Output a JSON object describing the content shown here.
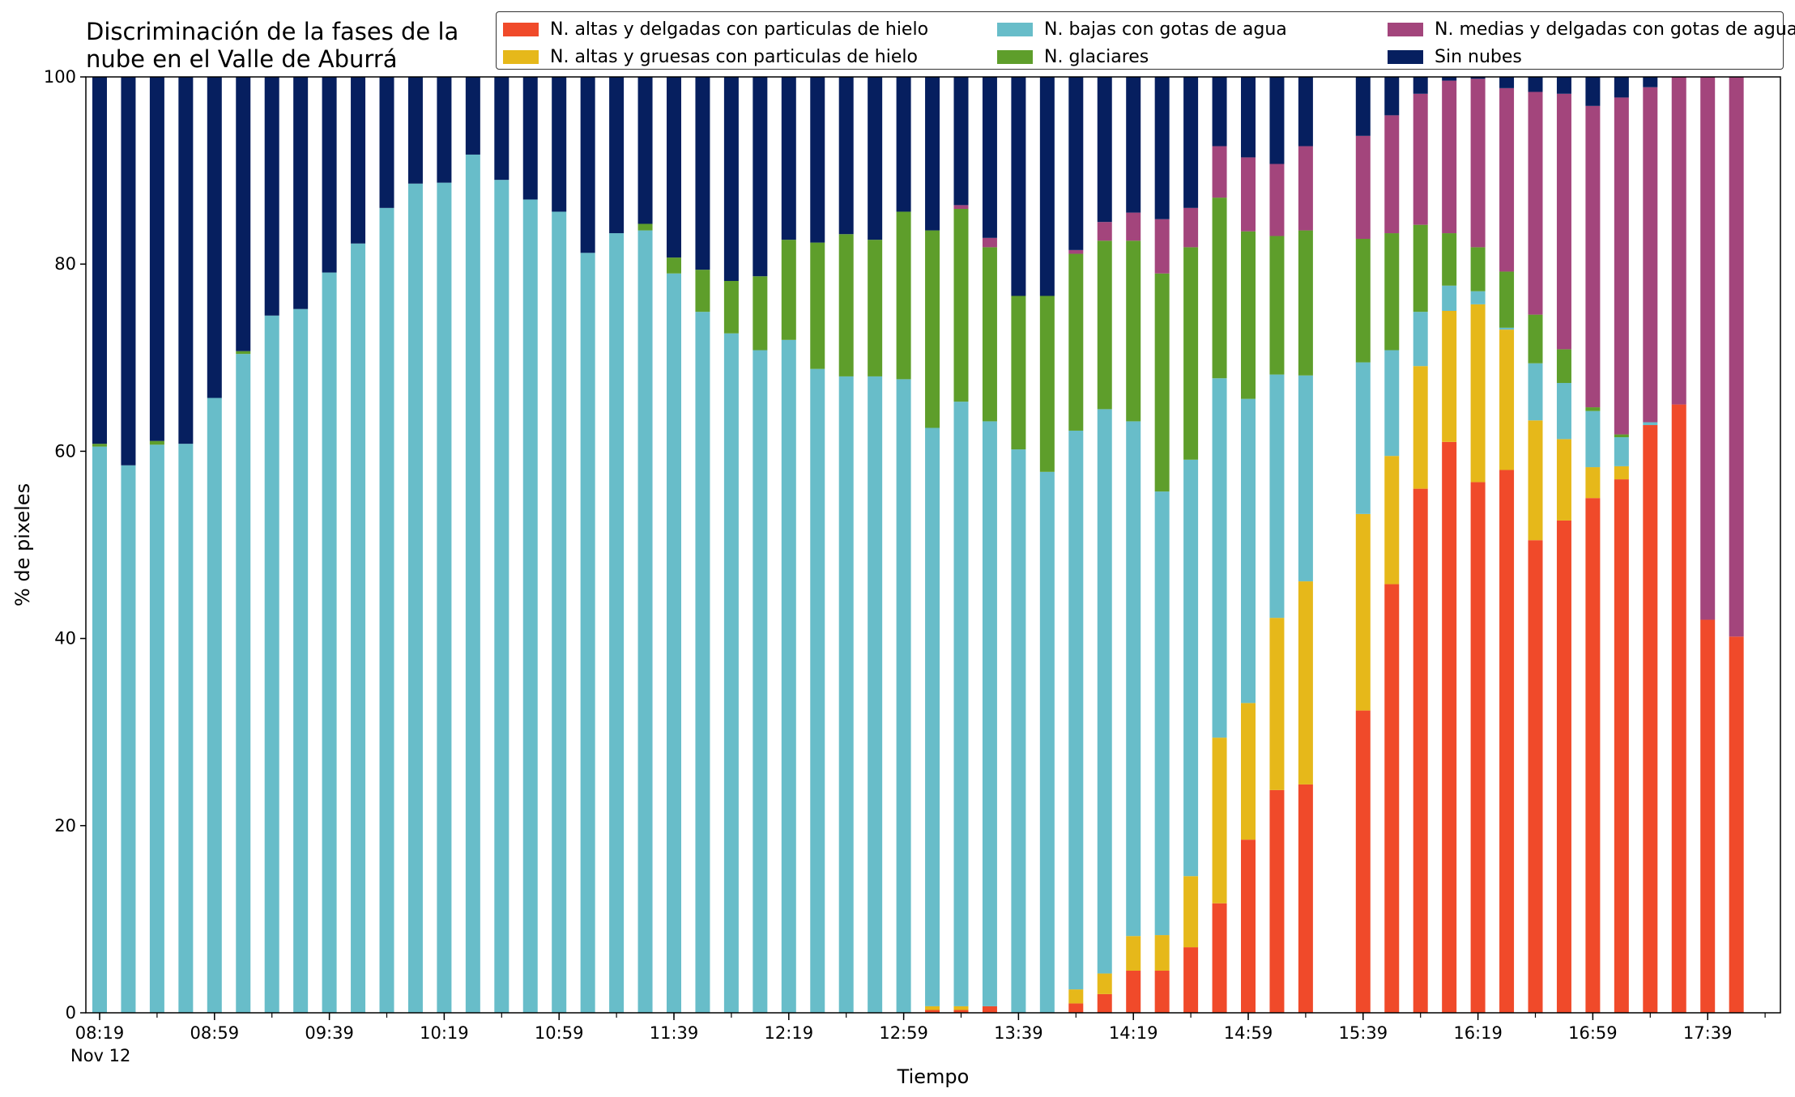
{
  "chart_data": {
    "type": "bar",
    "stacked": true,
    "title": [
      "Discriminación de la fases de la",
      "nube en el Valle de Aburrá"
    ],
    "xlabel": "Tiempo",
    "ylabel": "% de pixeles",
    "ylim": [
      0,
      100
    ],
    "yticks": [
      0,
      20,
      40,
      60,
      80,
      100
    ],
    "xtick_labels": [
      "08:19",
      "08:59",
      "09:39",
      "10:19",
      "10:59",
      "11:39",
      "12:19",
      "12:59",
      "13:39",
      "14:19",
      "14:59",
      "15:39",
      "16:19",
      "16:59",
      "17:39"
    ],
    "x_date_label": "Nov 12",
    "grid": false,
    "legend_position": "top-right",
    "categories": [
      "08:19",
      "08:29",
      "08:39",
      "08:49",
      "08:59",
      "09:09",
      "09:19",
      "09:29",
      "09:39",
      "09:49",
      "09:59",
      "10:09",
      "10:19",
      "10:29",
      "10:39",
      "10:49",
      "10:59",
      "11:09",
      "11:19",
      "11:29",
      "11:39",
      "11:49",
      "11:59",
      "12:09",
      "12:19",
      "12:29",
      "12:39",
      "12:49",
      "12:59",
      "13:09",
      "13:19",
      "13:29",
      "13:39",
      "13:49",
      "13:59",
      "14:09",
      "14:19",
      "14:29",
      "14:39",
      "14:49",
      "14:59",
      "15:09",
      "15:19",
      "15:29",
      "15:39",
      "15:49",
      "15:59",
      "16:09",
      "16:19",
      "16:29",
      "16:39",
      "16:49",
      "16:59",
      "17:09",
      "17:19",
      "17:29",
      "17:39",
      "17:49"
    ],
    "series": [
      {
        "name": "N. altas y delgadas con particulas de hielo",
        "color": "#f04a2a",
        "values": [
          0,
          0,
          0,
          0,
          0,
          0,
          0,
          0,
          0,
          0,
          0,
          0,
          0,
          0,
          0,
          0,
          0,
          0,
          0,
          0,
          0,
          0,
          0,
          0,
          0,
          0,
          0,
          0,
          0,
          0.3,
          0.3,
          0.7,
          0,
          0,
          1,
          2,
          4.5,
          4.5,
          7,
          11.7,
          18.5,
          23.8,
          24.4,
          null,
          32.3,
          45.8,
          56,
          61,
          56.7,
          58,
          50.5,
          52.6,
          55,
          57,
          62.8,
          65,
          42,
          40.2
        ]
      },
      {
        "name": "N. altas y gruesas con particulas de hielo",
        "color": "#e6b81a",
        "values": [
          0,
          0,
          0,
          0,
          0,
          0,
          0,
          0,
          0,
          0,
          0,
          0,
          0,
          0,
          0,
          0,
          0,
          0,
          0,
          0,
          0,
          0,
          0,
          0,
          0,
          0,
          0,
          0,
          0,
          0.4,
          0.4,
          0,
          0,
          0,
          1.5,
          2.2,
          3.7,
          3.8,
          7.6,
          17.7,
          14.6,
          18.4,
          21.7,
          null,
          21,
          13.7,
          13.1,
          14,
          19,
          15,
          12.8,
          8.7,
          3.3,
          1.4,
          0,
          0,
          0,
          0
        ]
      },
      {
        "name": "N. bajas con gotas de agua",
        "color": "#68bdc9",
        "values": [
          60.5,
          58.5,
          60.7,
          60.8,
          65.7,
          70.4,
          74.5,
          75.2,
          79.1,
          82.2,
          86,
          88.6,
          88.7,
          91.7,
          89,
          86.9,
          85.6,
          81.2,
          83.3,
          83.6,
          79,
          74.9,
          72.6,
          70.8,
          71.9,
          68.8,
          68,
          68,
          67.7,
          61.8,
          64.6,
          62.5,
          60.2,
          57.8,
          59.7,
          60.3,
          55,
          47.4,
          44.5,
          38.4,
          32.5,
          26,
          22,
          null,
          16.2,
          11.3,
          5.8,
          2.7,
          1.4,
          0.2,
          6.1,
          6,
          6,
          3.1,
          0.3,
          0,
          0,
          0
        ]
      },
      {
        "name": "N. glaciares",
        "color": "#5e9e2b",
        "values": [
          0.3,
          0,
          0.4,
          0,
          0,
          0.3,
          0,
          0,
          0,
          0,
          0,
          0,
          0,
          0,
          0,
          0,
          0,
          0,
          0,
          0.7,
          1.7,
          4.5,
          5.6,
          7.9,
          10.7,
          13.5,
          15.2,
          14.6,
          17.9,
          21.1,
          20.6,
          18.6,
          16.4,
          18.8,
          18.9,
          18,
          19.3,
          23.3,
          22.7,
          19.3,
          17.9,
          14.8,
          15.5,
          null,
          13.2,
          12.5,
          9.3,
          5.6,
          4.7,
          6,
          5.2,
          3.6,
          0.4,
          0.3,
          0,
          0,
          0,
          0
        ]
      },
      {
        "name": "N. medias y delgadas con gotas de agua",
        "color": "#a3457c",
        "values": [
          0,
          0,
          0,
          0,
          0,
          0,
          0,
          0,
          0,
          0,
          0,
          0,
          0,
          0,
          0,
          0,
          0,
          0,
          0,
          0,
          0,
          0,
          0,
          0,
          0,
          0,
          0,
          0,
          0,
          0,
          0.4,
          1,
          0,
          0,
          0.4,
          2,
          3,
          5.8,
          4.2,
          5.5,
          7.9,
          7.7,
          9,
          null,
          11,
          12.6,
          14,
          16.3,
          18,
          19.6,
          23.8,
          27.3,
          32.2,
          36,
          35.8,
          35,
          58,
          59.8
        ]
      },
      {
        "name": "Sin nubes",
        "color": "#061f5f",
        "values": [
          39.2,
          41.5,
          38.9,
          39.2,
          34.3,
          29.3,
          25.5,
          24.8,
          20.9,
          17.8,
          14,
          11.4,
          11.3,
          8.3,
          11,
          13.1,
          14.4,
          18.8,
          16.7,
          15.7,
          19.3,
          20.6,
          21.8,
          21.3,
          17.4,
          17.7,
          16.8,
          17.4,
          14.4,
          16.4,
          13.7,
          17.2,
          23.4,
          23.4,
          18.5,
          15.5,
          14.5,
          15.2,
          14,
          7.4,
          8.6,
          9.3,
          7.4,
          null,
          6.3,
          4.1,
          1.8,
          0.4,
          0.2,
          1.2,
          1.6,
          1.8,
          3.1,
          2.2,
          1.1,
          0,
          0,
          0
        ]
      }
    ]
  }
}
